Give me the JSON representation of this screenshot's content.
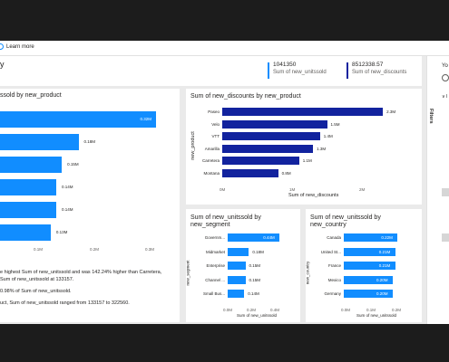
{
  "topbar": {
    "learn_more": "Learn more"
  },
  "page": {
    "heading_fragment": "y"
  },
  "kpis": [
    {
      "value": "1041350",
      "label": "Sum of new_unitssold",
      "color": "#118dff"
    },
    {
      "value": "8512338.57",
      "label": "Sum of new_discounts",
      "color": "#12239e"
    }
  ],
  "visuals": {
    "units_by_product": {
      "title": "ssold by new_product",
      "bars": [
        {
          "value_label": "0.32M",
          "value": 0.32
        },
        {
          "value_label": "0.18M",
          "value": 0.18
        },
        {
          "value_label": "0.15M",
          "value": 0.15
        },
        {
          "value_label": "0.14M",
          "value": 0.14
        },
        {
          "value_label": "0.14M",
          "value": 0.14
        },
        {
          "value_label": "0.13M",
          "value": 0.13
        }
      ],
      "ticks": [
        "0.1M",
        "0.2M",
        "0.3M"
      ]
    },
    "discounts_by_product": {
      "title": "Sum of new_discounts by new_product",
      "y_axis_title": "new_product",
      "x_axis_title": "Sum of new_discounts",
      "categories": [
        "Paseo",
        "Velo",
        "VTT",
        "Amarilla",
        "Carretera",
        "Montana"
      ],
      "value_labels": [
        "2.3M",
        "1.5M",
        "1.4M",
        "1.3M",
        "1.1M",
        "0.8M"
      ],
      "values": [
        2.3,
        1.5,
        1.4,
        1.3,
        1.1,
        0.8
      ],
      "ticks": [
        "0M",
        "1M",
        "2M"
      ]
    },
    "units_by_segment": {
      "title": "Sum of new_unitssold by new_segment",
      "y_axis_title": "new_segment",
      "x_axis_title": "Sum of new_unitssold",
      "categories": [
        "Governm...",
        "Midmarket",
        "Enterprise",
        "Channel ...",
        "Small Bus..."
      ],
      "value_labels": [
        "0.44M",
        "0.18M",
        "0.15M",
        "0.15M",
        "0.14M"
      ],
      "values": [
        0.44,
        0.18,
        0.15,
        0.15,
        0.14
      ],
      "ticks": [
        "0.0M",
        "0.2M",
        "0.4M"
      ]
    },
    "units_by_country": {
      "title": "Sum of new_unitssold by new_country",
      "y_axis_title": "new_country",
      "x_axis_title": "Sum of new_unitssold",
      "categories": [
        "Canada",
        "United St...",
        "France",
        "Mexico",
        "Germany"
      ],
      "value_labels": [
        "0.22M",
        "0.21M",
        "0.21M",
        "0.20M",
        "0.20M"
      ],
      "values": [
        0.22,
        0.21,
        0.21,
        0.2,
        0.2
      ],
      "ticks": [
        "0.0M",
        "0.1M",
        "0.2M"
      ]
    },
    "narrative": {
      "line1": "e highest Sum of new_unitssold and was 142.24% higher than Carretera,",
      "line2": "Sum of new_unitssold at 133157.",
      "line3": "0.98% of Sum of new_unitssold.",
      "line4": "uct, Sum of new_unitssold ranged from 133157 to 322560."
    }
  },
  "rightpane": {
    "top_label": "Yo",
    "filters_label": "Filters",
    "v_label": "∨ I"
  },
  "colors": {
    "light_blue": "#118dff",
    "dark_blue": "#12239e"
  }
}
